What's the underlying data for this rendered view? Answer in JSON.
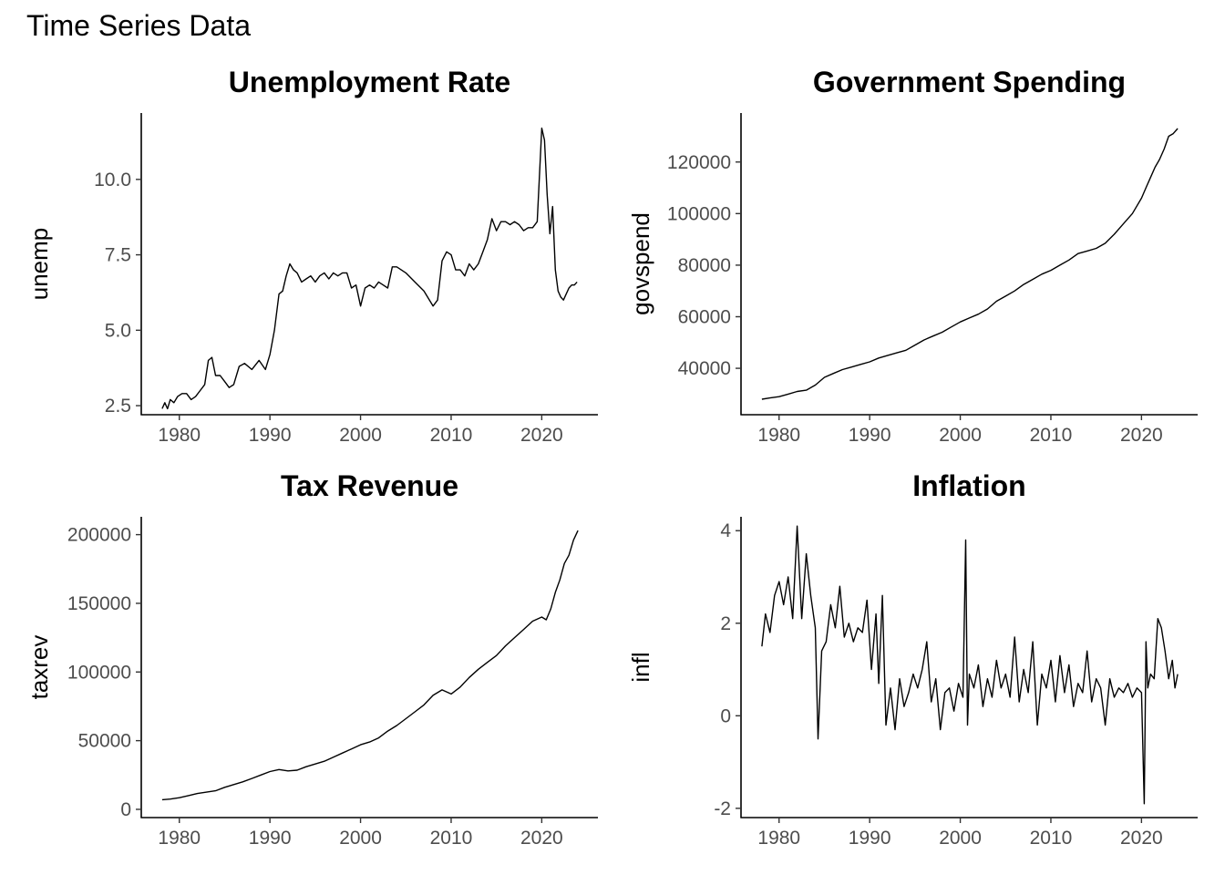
{
  "page": {
    "title": "Time Series Data"
  },
  "chart_data": [
    {
      "type": "line",
      "title": "Unemployment Rate",
      "xlabel": "",
      "ylabel": "unemp",
      "xlim": [
        1975.8,
        2026.2
      ],
      "ylim": [
        2.2,
        12.2
      ],
      "xticks": [
        1980,
        1990,
        2000,
        2010,
        2020
      ],
      "yticks": [
        2.5,
        5.0,
        7.5,
        10.0
      ],
      "ytick_labels": [
        "2.5",
        "5.0",
        "7.5",
        "10.0"
      ],
      "grid": false,
      "series": [
        {
          "x": [
            1978.1,
            1978.4,
            1978.7,
            1979.0,
            1979.4,
            1979.8,
            1980.3,
            1980.8,
            1981.3,
            1981.8,
            1982.3,
            1982.8,
            1983.2,
            1983.6,
            1984.0,
            1984.5,
            1985.0,
            1985.5,
            1986.0,
            1986.6,
            1987.2,
            1988.0,
            1988.8,
            1989.5,
            1990.0,
            1990.5,
            1991.0,
            1991.4,
            1991.8,
            1992.2,
            1992.6,
            1993.0,
            1993.5,
            1994.0,
            1994.5,
            1995.0,
            1995.5,
            1996.0,
            1996.5,
            1997.0,
            1997.5,
            1998.0,
            1998.5,
            1999.0,
            1999.5,
            2000.0,
            2000.5,
            2001.0,
            2001.5,
            2002.0,
            2002.5,
            2003.0,
            2003.5,
            2004.0,
            2005.0,
            2006.0,
            2007.0,
            2008.0,
            2008.5,
            2009.0,
            2009.5,
            2010.0,
            2010.5,
            2011.0,
            2011.5,
            2012.0,
            2012.5,
            2013.0,
            2013.5,
            2014.0,
            2014.5,
            2015.0,
            2015.5,
            2016.0,
            2016.5,
            2017.0,
            2017.5,
            2018.0,
            2018.5,
            2019.0,
            2019.5,
            2020.0,
            2020.3,
            2020.6,
            2020.9,
            2021.2,
            2021.5,
            2021.8,
            2022.1,
            2022.4,
            2022.7,
            2023.0,
            2023.3,
            2023.6,
            2023.9
          ],
          "y": [
            2.4,
            2.6,
            2.4,
            2.7,
            2.6,
            2.8,
            2.9,
            2.9,
            2.7,
            2.8,
            3.0,
            3.2,
            4.0,
            4.1,
            3.5,
            3.5,
            3.3,
            3.1,
            3.2,
            3.8,
            3.9,
            3.7,
            4.0,
            3.7,
            4.2,
            5.0,
            6.2,
            6.3,
            6.8,
            7.2,
            7.0,
            6.9,
            6.6,
            6.7,
            6.8,
            6.6,
            6.8,
            6.9,
            6.7,
            6.9,
            6.8,
            6.9,
            6.9,
            6.4,
            6.5,
            5.8,
            6.4,
            6.5,
            6.4,
            6.6,
            6.5,
            6.4,
            7.1,
            7.1,
            6.9,
            6.6,
            6.3,
            5.8,
            6.0,
            7.3,
            7.6,
            7.5,
            7.0,
            7.0,
            6.8,
            7.2,
            7.0,
            7.2,
            7.6,
            8.0,
            8.7,
            8.3,
            8.6,
            8.6,
            8.5,
            8.6,
            8.5,
            8.3,
            8.4,
            8.4,
            8.6,
            11.7,
            11.3,
            9.5,
            8.2,
            9.1,
            7.0,
            6.3,
            6.1,
            6.0,
            6.2,
            6.4,
            6.5,
            6.5,
            6.6
          ]
        }
      ]
    },
    {
      "type": "line",
      "title": "Government Spending",
      "xlabel": "",
      "ylabel": "govspend",
      "xlim": [
        1975.8,
        2026.2
      ],
      "ylim": [
        22000,
        139000
      ],
      "xticks": [
        1980,
        1990,
        2000,
        2010,
        2020
      ],
      "yticks": [
        40000,
        60000,
        80000,
        100000,
        120000
      ],
      "ytick_labels": [
        "40000",
        "60000",
        "80000",
        "100000",
        "120000"
      ],
      "grid": false,
      "series": [
        {
          "x": [
            1978.1,
            1979.0,
            1980.0,
            1981.0,
            1982.0,
            1983.0,
            1984.0,
            1985.0,
            1986.0,
            1987.0,
            1988.0,
            1989.0,
            1990.0,
            1991.0,
            1992.0,
            1993.0,
            1994.0,
            1995.0,
            1996.0,
            1997.0,
            1998.0,
            1999.0,
            2000.0,
            2001.0,
            2002.0,
            2003.0,
            2004.0,
            2005.0,
            2006.0,
            2007.0,
            2008.0,
            2009.0,
            2010.0,
            2011.0,
            2012.0,
            2013.0,
            2014.0,
            2015.0,
            2016.0,
            2017.0,
            2018.0,
            2019.0,
            2020.0,
            2020.5,
            2021.0,
            2021.5,
            2022.0,
            2022.5,
            2023.0,
            2023.5,
            2024.0
          ],
          "y": [
            28000,
            28500,
            29000,
            30000,
            31000,
            31500,
            33500,
            36500,
            38000,
            39500,
            40500,
            41500,
            42500,
            44000,
            45000,
            46000,
            47000,
            49000,
            51000,
            52500,
            54000,
            56000,
            58000,
            59500,
            61000,
            63000,
            66000,
            68000,
            70000,
            72500,
            74500,
            76500,
            78000,
            80000,
            82000,
            84500,
            85500,
            86500,
            88500,
            92000,
            96000,
            100000,
            106000,
            110000,
            114000,
            118000,
            121000,
            125000,
            130000,
            131000,
            133000
          ]
        }
      ]
    },
    {
      "type": "line",
      "title": "Tax Revenue",
      "xlabel": "",
      "ylabel": "taxrev",
      "xlim": [
        1975.8,
        2026.2
      ],
      "ylim": [
        -6000,
        213000
      ],
      "xticks": [
        1980,
        1990,
        2000,
        2010,
        2020
      ],
      "yticks": [
        0,
        50000,
        100000,
        150000,
        200000
      ],
      "ytick_labels": [
        "0",
        "50000",
        "100000",
        "150000",
        "200000"
      ],
      "grid": false,
      "series": [
        {
          "x": [
            1978.1,
            1979.0,
            1980.0,
            1981.0,
            1982.0,
            1983.0,
            1984.0,
            1985.0,
            1986.0,
            1987.0,
            1988.0,
            1989.0,
            1990.0,
            1991.0,
            1992.0,
            1993.0,
            1994.0,
            1995.0,
            1996.0,
            1997.0,
            1998.0,
            1999.0,
            2000.0,
            2001.0,
            2002.0,
            2003.0,
            2004.0,
            2005.0,
            2006.0,
            2007.0,
            2008.0,
            2009.0,
            2010.0,
            2011.0,
            2012.0,
            2013.0,
            2014.0,
            2015.0,
            2016.0,
            2017.0,
            2018.0,
            2019.0,
            2020.0,
            2020.5,
            2021.0,
            2021.5,
            2022.0,
            2022.5,
            2023.0,
            2023.5,
            2024.0
          ],
          "y": [
            7000,
            7500,
            8500,
            10000,
            11500,
            12500,
            13500,
            16000,
            18000,
            20000,
            22500,
            25000,
            27500,
            29000,
            28000,
            28500,
            31000,
            33000,
            35000,
            38000,
            41000,
            44000,
            47000,
            49000,
            52000,
            57000,
            61000,
            66000,
            71000,
            76000,
            83000,
            87000,
            84000,
            89000,
            96000,
            102000,
            107000,
            112000,
            119000,
            125000,
            131000,
            137000,
            140000,
            138000,
            146000,
            158000,
            167000,
            179000,
            185000,
            196000,
            203000
          ]
        }
      ]
    },
    {
      "type": "line",
      "title": "Inflation",
      "xlabel": "",
      "ylabel": "infl",
      "xlim": [
        1975.8,
        2026.2
      ],
      "ylim": [
        -2.2,
        4.3
      ],
      "xticks": [
        1980,
        1990,
        2000,
        2010,
        2020
      ],
      "yticks": [
        -2,
        0,
        2,
        4
      ],
      "ytick_labels": [
        "-2",
        "0",
        "2",
        "4"
      ],
      "grid": false,
      "series": [
        {
          "x": [
            1978.1,
            1978.5,
            1979.0,
            1979.5,
            1980.0,
            1980.5,
            1981.0,
            1981.5,
            1982.0,
            1982.5,
            1983.0,
            1983.5,
            1984.0,
            1984.3,
            1984.7,
            1985.2,
            1985.7,
            1986.2,
            1986.7,
            1987.2,
            1987.7,
            1988.2,
            1988.7,
            1989.2,
            1989.7,
            1990.2,
            1990.7,
            1991.0,
            1991.4,
            1991.8,
            1992.3,
            1992.8,
            1993.3,
            1993.8,
            1994.3,
            1994.8,
            1995.3,
            1995.8,
            1996.3,
            1996.8,
            1997.3,
            1997.8,
            1998.3,
            1998.8,
            1999.3,
            1999.8,
            2000.3,
            2000.6,
            2000.8,
            2001.0,
            2001.5,
            2002.0,
            2002.5,
            2003.0,
            2003.5,
            2004.0,
            2004.5,
            2005.0,
            2005.5,
            2006.0,
            2006.5,
            2007.0,
            2007.5,
            2008.0,
            2008.5,
            2009.0,
            2009.5,
            2010.0,
            2010.5,
            2011.0,
            2011.5,
            2012.0,
            2012.5,
            2013.0,
            2013.5,
            2014.0,
            2014.5,
            2015.0,
            2015.5,
            2016.0,
            2016.5,
            2017.0,
            2017.5,
            2018.0,
            2018.5,
            2019.0,
            2019.5,
            2020.0,
            2020.3,
            2020.5,
            2020.7,
            2021.0,
            2021.4,
            2021.8,
            2022.2,
            2022.6,
            2023.0,
            2023.4,
            2023.7,
            2024.0
          ],
          "y": [
            1.5,
            2.2,
            1.8,
            2.6,
            2.9,
            2.4,
            3.0,
            2.1,
            4.1,
            2.1,
            3.5,
            2.6,
            1.9,
            -0.5,
            1.4,
            1.6,
            2.4,
            1.9,
            2.8,
            1.7,
            2.0,
            1.6,
            1.9,
            1.8,
            2.5,
            1.0,
            2.2,
            0.7,
            2.6,
            -0.2,
            0.6,
            -0.3,
            0.8,
            0.2,
            0.5,
            0.9,
            0.6,
            1.0,
            1.6,
            0.3,
            0.8,
            -0.3,
            0.5,
            0.6,
            0.1,
            0.7,
            0.4,
            3.8,
            -0.2,
            0.9,
            0.6,
            1.1,
            0.2,
            0.8,
            0.4,
            1.2,
            0.6,
            0.9,
            0.4,
            1.7,
            0.3,
            1.0,
            0.5,
            1.6,
            -0.2,
            0.9,
            0.6,
            1.2,
            0.3,
            1.3,
            0.5,
            1.1,
            0.2,
            0.7,
            0.5,
            1.4,
            0.3,
            0.8,
            0.6,
            -0.2,
            0.8,
            0.4,
            0.6,
            0.5,
            0.7,
            0.4,
            0.6,
            0.5,
            -1.9,
            1.6,
            0.6,
            0.9,
            0.8,
            2.1,
            1.9,
            1.4,
            0.8,
            1.2,
            0.6,
            0.9
          ]
        }
      ]
    }
  ]
}
